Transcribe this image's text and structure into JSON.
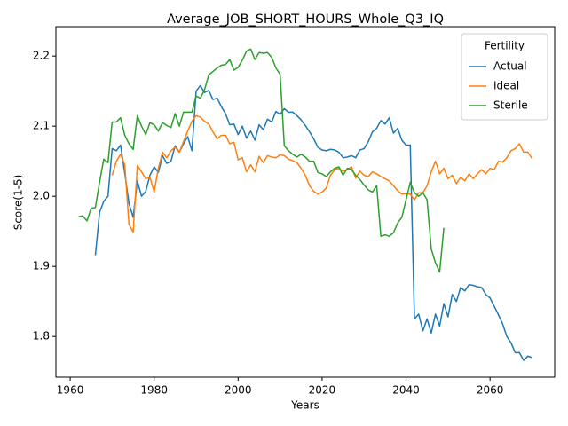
{
  "chart_data": {
    "type": "line",
    "title": "Average_JOB_SHORT_HOURS_Whole_Q3_IQ",
    "x_label": "Years",
    "y_label": "Score(1-5)",
    "legend_title": "Fertility",
    "legend": "upper right",
    "grid": false,
    "xlim": [
      1956.6,
      2075.4
    ],
    "ylim": [
      1.742,
      2.242
    ],
    "xticks": [
      1960,
      1980,
      2000,
      2020,
      2040,
      2060
    ],
    "yticks": [
      1.8,
      1.9,
      {
        "value": 2,
        "label": "2.0"
      },
      2.1,
      2.2
    ],
    "x": [
      1962,
      1963,
      1964,
      1965,
      1966,
      1967,
      1968,
      1969,
      1970,
      1971,
      1972,
      1973,
      1974,
      1975,
      1976,
      1977,
      1978,
      1979,
      1980,
      1981,
      1982,
      1983,
      1984,
      1985,
      1986,
      1987,
      1988,
      1989,
      1990,
      1991,
      1992,
      1993,
      1994,
      1995,
      1996,
      1997,
      1998,
      1999,
      2000,
      2001,
      2002,
      2003,
      2004,
      2005,
      2006,
      2007,
      2008,
      2009,
      2010,
      2011,
      2012,
      2013,
      2014,
      2015,
      2016,
      2017,
      2018,
      2019,
      2020,
      2021,
      2022,
      2023,
      2024,
      2025,
      2026,
      2027,
      2028,
      2029,
      2030,
      2031,
      2032,
      2033,
      2034,
      2035,
      2036,
      2037,
      2038,
      2039,
      2040,
      2041,
      2042,
      2043,
      2044,
      2045,
      2046,
      2047,
      2048,
      2049,
      2050,
      2051,
      2052,
      2053,
      2054,
      2055,
      2056,
      2057,
      2058,
      2059,
      2060,
      2061,
      2062,
      2063,
      2064,
      2065,
      2066,
      2067,
      2068,
      2069,
      2070
    ],
    "series": [
      {
        "name": "Actual",
        "color": "#1f77b4",
        "values": [
          null,
          null,
          null,
          null,
          1.916,
          1.977,
          1.993,
          2.0,
          2.068,
          2.065,
          2.073,
          2.033,
          1.99,
          1.97,
          2.022,
          2.0,
          2.007,
          2.03,
          2.042,
          2.034,
          2.058,
          2.047,
          2.05,
          2.072,
          2.063,
          2.075,
          2.085,
          2.065,
          2.15,
          2.158,
          2.148,
          2.151,
          2.138,
          2.14,
          2.128,
          2.118,
          2.102,
          2.103,
          2.088,
          2.1,
          2.083,
          2.093,
          2.08,
          2.102,
          2.095,
          2.11,
          2.106,
          2.121,
          2.117,
          2.125,
          2.12,
          2.12,
          2.115,
          2.109,
          2.101,
          2.092,
          2.082,
          2.07,
          2.066,
          2.065,
          2.067,
          2.066,
          2.063,
          2.055,
          2.056,
          2.058,
          2.055,
          2.066,
          2.068,
          2.078,
          2.092,
          2.097,
          2.108,
          2.103,
          2.112,
          2.09,
          2.097,
          2.08,
          2.073,
          2.073,
          1.825,
          1.832,
          1.808,
          1.825,
          1.805,
          1.832,
          1.815,
          1.847,
          1.828,
          1.86,
          1.85,
          1.87,
          1.865,
          1.874,
          1.873,
          1.871,
          1.87,
          1.86,
          1.855,
          1.843,
          1.831,
          1.818,
          1.8,
          1.791,
          1.777,
          1.777,
          1.766,
          1.772,
          1.77
        ]
      },
      {
        "name": "Ideal",
        "color": "#ff7f0e",
        "values": [
          null,
          null,
          null,
          null,
          null,
          null,
          null,
          null,
          2.03,
          2.05,
          2.06,
          2.045,
          1.96,
          1.949,
          2.044,
          2.035,
          2.025,
          2.027,
          2.006,
          2.04,
          2.063,
          2.055,
          2.065,
          2.07,
          2.063,
          2.078,
          2.093,
          2.107,
          2.115,
          2.113,
          2.107,
          2.103,
          2.092,
          2.082,
          2.087,
          2.087,
          2.075,
          2.077,
          2.052,
          2.055,
          2.035,
          2.045,
          2.035,
          2.057,
          2.048,
          2.058,
          2.056,
          2.055,
          2.059,
          2.058,
          2.053,
          2.051,
          2.048,
          2.04,
          2.03,
          2.015,
          2.007,
          2.003,
          2.006,
          2.012,
          2.03,
          2.038,
          2.04,
          2.036,
          2.038,
          2.042,
          2.026,
          2.036,
          2.03,
          2.028,
          2.035,
          2.032,
          2.028,
          2.025,
          2.022,
          2.015,
          2.008,
          2.003,
          2.004,
          2.003,
          1.995,
          2.005,
          2.005,
          2.015,
          2.035,
          2.05,
          2.032,
          2.04,
          2.025,
          2.03,
          2.018,
          2.027,
          2.022,
          2.032,
          2.025,
          2.032,
          2.038,
          2.032,
          2.04,
          2.038,
          2.05,
          2.049,
          2.055,
          2.065,
          2.068,
          2.075,
          2.063,
          2.063,
          2.054
        ]
      },
      {
        "name": "Sterile",
        "color": "#2ca02c",
        "values": [
          1.971,
          1.972,
          1.965,
          1.983,
          1.984,
          2.02,
          2.053,
          2.048,
          2.106,
          2.106,
          2.112,
          2.087,
          2.075,
          2.067,
          2.115,
          2.1,
          2.088,
          2.105,
          2.102,
          2.093,
          2.105,
          2.101,
          2.098,
          2.118,
          2.1,
          2.12,
          2.12,
          2.12,
          2.143,
          2.14,
          2.152,
          2.173,
          2.178,
          2.183,
          2.187,
          2.188,
          2.195,
          2.18,
          2.184,
          2.194,
          2.207,
          2.21,
          2.195,
          2.205,
          2.204,
          2.205,
          2.198,
          2.183,
          2.174,
          2.072,
          2.065,
          2.06,
          2.056,
          2.06,
          2.056,
          2.05,
          2.05,
          2.034,
          2.032,
          2.028,
          2.035,
          2.04,
          2.042,
          2.03,
          2.04,
          2.038,
          2.03,
          2.024,
          2.016,
          2.009,
          2.006,
          2.015,
          1.943,
          1.945,
          1.943,
          1.948,
          1.962,
          1.97,
          1.995,
          2.02,
          2.005,
          2.0,
          2.005,
          1.995,
          1.925,
          1.905,
          1.892,
          1.955,
          null,
          null,
          null,
          null,
          null,
          null,
          null,
          null,
          null,
          null,
          null,
          null,
          null,
          null,
          null,
          null,
          null,
          null,
          null,
          null,
          null
        ]
      }
    ]
  }
}
